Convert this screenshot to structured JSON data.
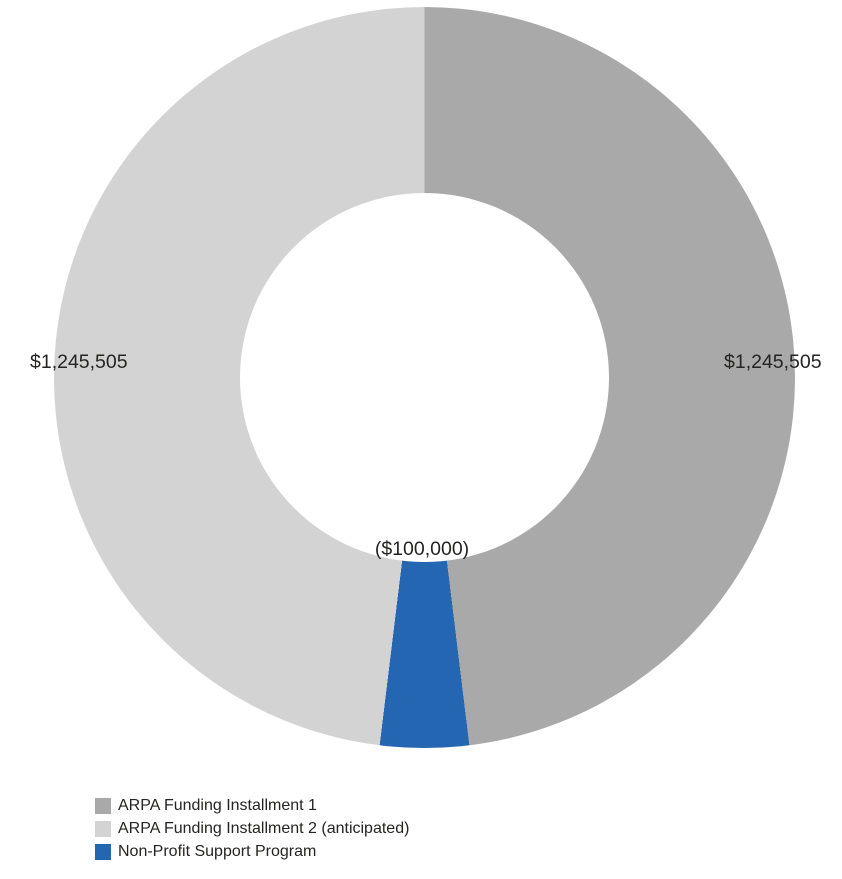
{
  "background_color": "#ffffff",
  "text_color": "#252423",
  "chart_data": {
    "type": "pie",
    "donut": true,
    "title": "",
    "start_angle_deg": 0,
    "clockwise": true,
    "inner_radius_ratio": 0.5,
    "legend_position": "bottom-left",
    "draw_order": [
      0,
      2,
      1
    ],
    "segments": [
      {
        "label": "ARPA Funding Installment 1",
        "value": 1245505,
        "data_label": "$1,245,505",
        "color": "#a9a9a9"
      },
      {
        "label": "ARPA Funding Installment 2 (anticipated)",
        "value": 1245505,
        "data_label": "$1,245,505",
        "color": "#d3d3d3"
      },
      {
        "label": "Non-Profit Support Program",
        "value": -100000,
        "data_label": "($100,000)",
        "color": "#2566b3"
      }
    ]
  }
}
